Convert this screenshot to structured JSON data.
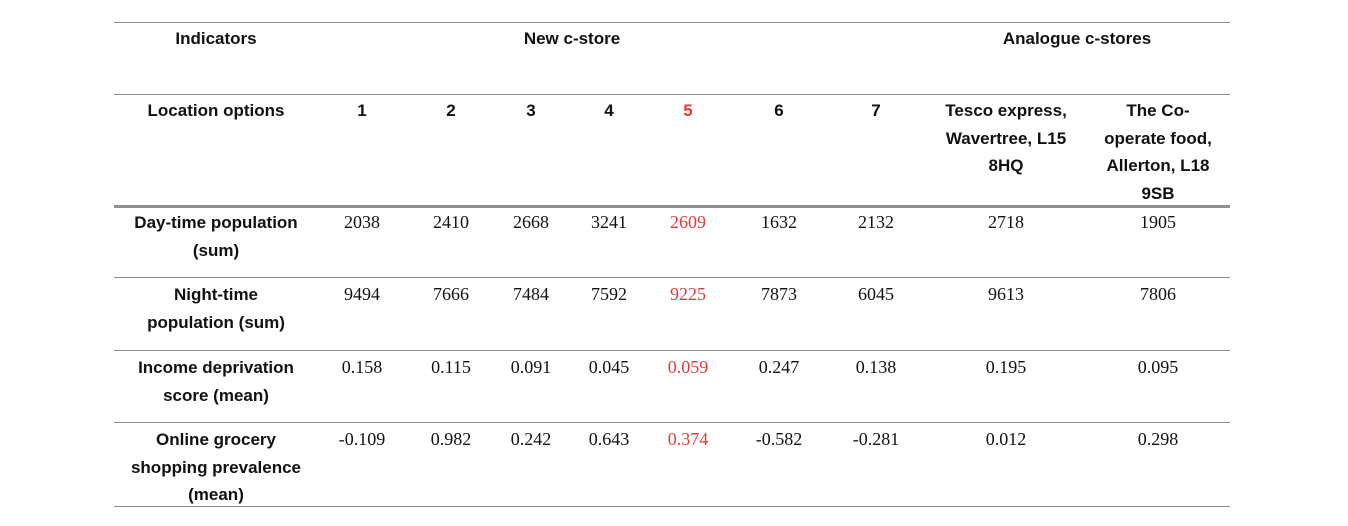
{
  "header": {
    "indicators_label": "Indicators",
    "new_store_label": "New c-store",
    "analogue_label": "Analogue c-stores"
  },
  "location_row": {
    "label": "Location options",
    "options": [
      "1",
      "2",
      "3",
      "4",
      "5",
      "6",
      "7"
    ],
    "analogue_1": [
      "Tesco express,",
      "Wavertree, L15",
      "8HQ"
    ],
    "analogue_2": [
      "The Co-",
      "operate food,",
      "Allerton, L18",
      "9SB"
    ]
  },
  "highlight_color": "#e03b3b",
  "highlight_column_index": 4,
  "rows": [
    {
      "label": [
        "Day-time population",
        "(sum)"
      ],
      "values": [
        "2038",
        "2410",
        "2668",
        "3241",
        "2609",
        "1632",
        "2132",
        "2718",
        "1905"
      ]
    },
    {
      "label": [
        "Night-time",
        "population (sum)"
      ],
      "values": [
        "9494",
        "7666",
        "7484",
        "7592",
        "9225",
        "7873",
        "6045",
        "9613",
        "7806"
      ]
    },
    {
      "label": [
        "Income deprivation",
        "score (mean)"
      ],
      "values": [
        "0.158",
        "0.115",
        "0.091",
        "0.045",
        "0.059",
        "0.247",
        "0.138",
        "0.195",
        "0.095"
      ]
    },
    {
      "label": [
        "Online grocery",
        "shopping prevalence",
        "(mean)"
      ],
      "values": [
        "-0.109",
        "0.982",
        "0.242",
        "0.643",
        "0.374",
        "-0.582",
        "-0.281",
        "0.012",
        "0.298"
      ]
    }
  ]
}
